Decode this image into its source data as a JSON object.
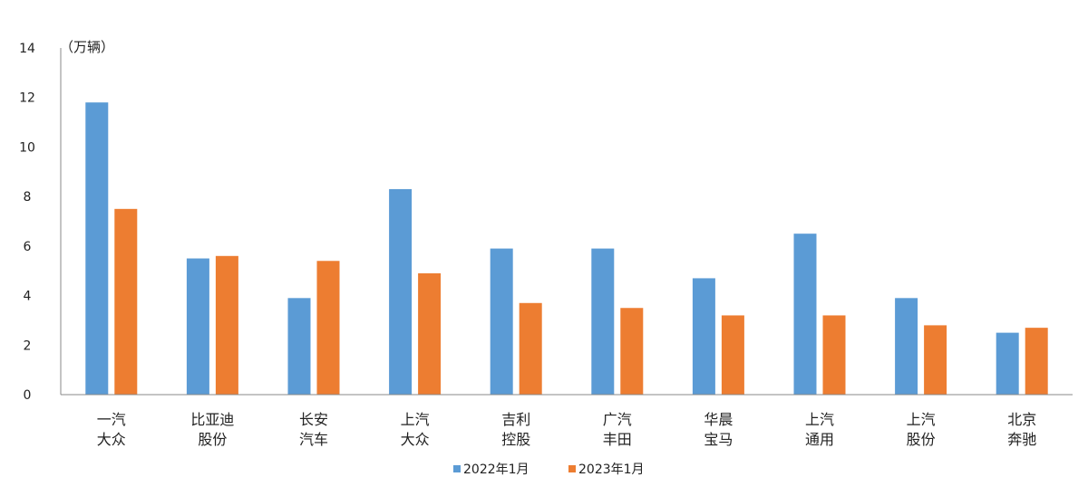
{
  "chart_data": {
    "type": "bar",
    "title": "",
    "xlabel": "",
    "ylabel": "（万辆）",
    "ylim": [
      0,
      14
    ],
    "yticks": [
      0,
      2,
      4,
      6,
      8,
      10,
      12,
      14
    ],
    "grid": false,
    "legend_position": "bottom",
    "categories": [
      [
        "一汽",
        "大众"
      ],
      [
        "比亚迪",
        "股份"
      ],
      [
        "长安",
        "汽车"
      ],
      [
        "上汽",
        "大众"
      ],
      [
        "吉利",
        "控股"
      ],
      [
        "广汽",
        "丰田"
      ],
      [
        "华晨",
        "宝马"
      ],
      [
        "上汽",
        "通用"
      ],
      [
        "上汽",
        "股份"
      ],
      [
        "北京",
        "奔驰"
      ]
    ],
    "series": [
      {
        "name": "2022年1月",
        "color": "#5B9BD5",
        "values": [
          11.8,
          5.5,
          3.9,
          8.3,
          5.9,
          5.9,
          4.7,
          6.5,
          3.9,
          2.5
        ]
      },
      {
        "name": "2023年1月",
        "color": "#ED7D31",
        "values": [
          7.5,
          5.6,
          5.4,
          4.9,
          3.7,
          3.5,
          3.2,
          3.2,
          2.8,
          2.7
        ]
      }
    ]
  }
}
